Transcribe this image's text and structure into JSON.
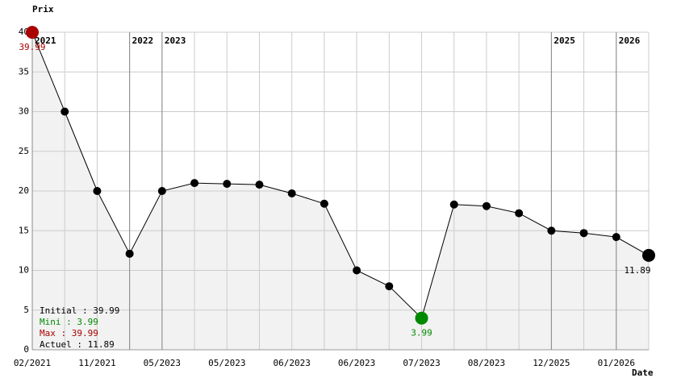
{
  "chart_data": {
    "type": "line",
    "y_label": "Prix",
    "x_label": "Date",
    "categories": [
      "02/2021",
      null,
      "11/2021",
      null,
      "05/2023",
      null,
      "05/2023",
      null,
      "06/2023",
      null,
      "06/2023",
      null,
      "07/2023",
      null,
      "08/2023",
      null,
      "12/2025",
      null,
      "01/2026",
      null
    ],
    "series": [
      {
        "name": "Prix",
        "color": "#000000",
        "values": [
          39.99,
          30,
          20,
          12.1,
          20,
          21,
          20.9,
          20.8,
          19.7,
          18.4,
          10,
          8,
          3.99,
          18.3,
          18.1,
          17.2,
          15,
          14.7,
          14.2,
          11.89
        ],
        "value_labels": [
          "39.99",
          null,
          null,
          null,
          null,
          null,
          null,
          null,
          null,
          null,
          null,
          null,
          "3.99",
          null,
          null,
          null,
          null,
          null,
          null,
          "11.89"
        ]
      }
    ],
    "highlights": [
      {
        "index": 0,
        "color": "#aa0000"
      },
      {
        "index": 12,
        "color": "#008800"
      },
      {
        "index": 19,
        "color": "#000000"
      }
    ],
    "year_markers": [
      {
        "index": 0,
        "label": "2021"
      },
      {
        "index": 3,
        "label": "2022"
      },
      {
        "index": 4,
        "label": "2023"
      },
      {
        "index": 16,
        "label": "2025"
      },
      {
        "index": 18,
        "label": "2026"
      }
    ],
    "summary": [
      {
        "text": "Initial : 39.99",
        "color": "#000000"
      },
      {
        "text": "Mini : 3.99",
        "color": "#008800"
      },
      {
        "text": "Max : 39.99",
        "color": "#aa0000"
      },
      {
        "text": "Actuel : 11.89",
        "color": "#000000"
      }
    ],
    "ylim": [
      0,
      40
    ],
    "yticks": [
      0,
      5,
      10,
      15,
      20,
      25,
      30,
      35,
      40
    ],
    "grid": true,
    "area_color": "#f2f2f2"
  }
}
